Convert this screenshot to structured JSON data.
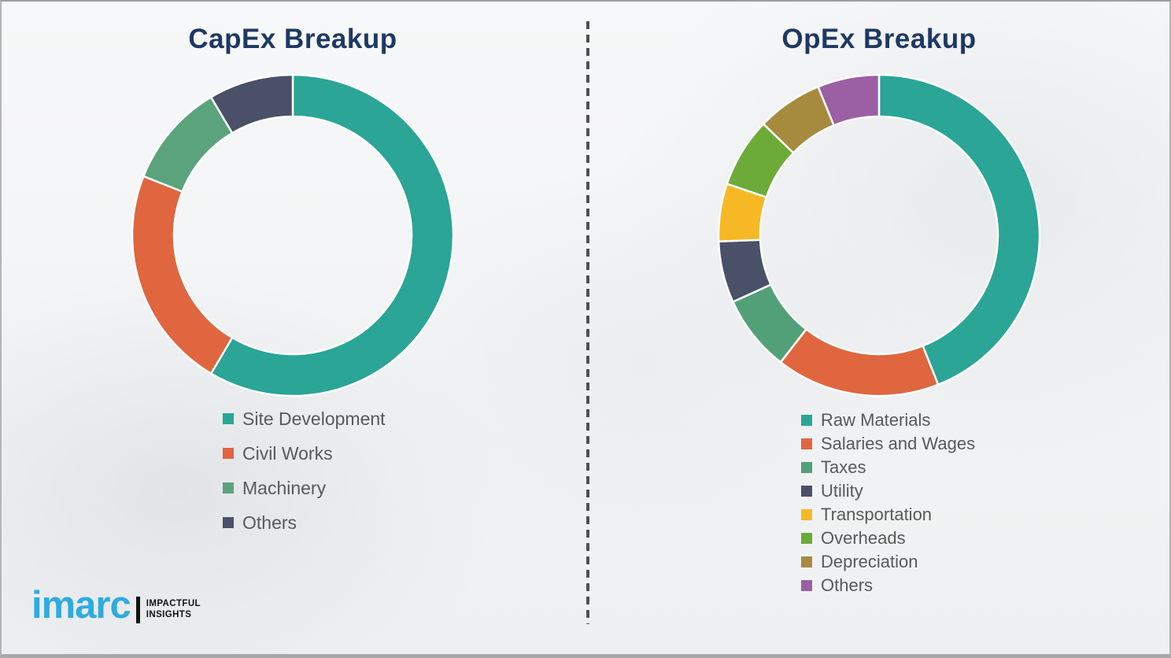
{
  "page": {
    "background_color": "#f2f3f4",
    "divider_style": "vertical-dashed"
  },
  "colors": {
    "title_navy": "#1f3864",
    "legend_text_gray": "#595959",
    "divider_gray": "#4f5052",
    "brand_blue": "#2fabe1",
    "tagline_black": "#121212"
  },
  "logo": {
    "brand": "imarc",
    "tagline_line1": "IMPACTFUL",
    "tagline_line2": "INSIGHTS"
  },
  "chart_data": [
    {
      "type": "pie",
      "variant": "donut",
      "title": "CapEx Breakup",
      "categories": [
        "Site Development",
        "Civil Works",
        "Machinery",
        "Others"
      ],
      "values": [
        58.5,
        22.5,
        10.5,
        8.5
      ],
      "unit": "%",
      "colors": [
        "#2aa596",
        "#e0663f",
        "#5aa37c",
        "#4a5067"
      ],
      "start_angle_deg": 0,
      "direction": "clockwise",
      "inner_radius_ratio": 0.74,
      "separator_color": "#ffffff",
      "legend_position": "below-left",
      "data_labels": false
    },
    {
      "type": "pie",
      "variant": "donut",
      "title": "OpEx Breakup",
      "categories": [
        "Raw Materials",
        "Salaries and Wages",
        "Taxes",
        "Utility",
        "Transportation",
        "Overheads",
        "Depreciation",
        "Others"
      ],
      "values": [
        44.0,
        16.5,
        7.7,
        6.2,
        5.8,
        7.0,
        6.6,
        6.2
      ],
      "unit": "%",
      "colors": [
        "#2aa596",
        "#e0663f",
        "#52a077",
        "#4a5067",
        "#f7b825",
        "#6cab38",
        "#a68b3e",
        "#9b5fa4"
      ],
      "start_angle_deg": 0,
      "direction": "clockwise",
      "inner_radius_ratio": 0.74,
      "separator_color": "#ffffff",
      "legend_position": "below-left",
      "data_labels": false
    }
  ]
}
